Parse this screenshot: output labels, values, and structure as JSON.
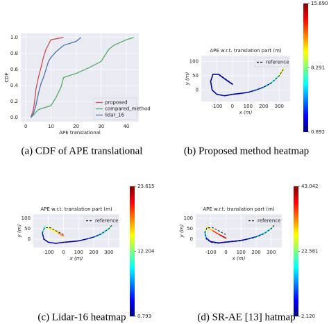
{
  "chart_data": [
    {
      "type": "line",
      "caption": "(a) CDF of APE translational",
      "xlabel": "APE translational",
      "ylabel": "CDF",
      "xlim": [
        -2,
        45
      ],
      "ylim": [
        -0.05,
        1.05
      ],
      "xticks": [
        0,
        10,
        20,
        30,
        40
      ],
      "yticks": [
        {
          "value": 0,
          "label": "0.0"
        },
        {
          "value": 0.2,
          "label": "0.2"
        },
        {
          "value": 0.4,
          "label": "0.4"
        },
        {
          "value": 0.6,
          "label": "0.6"
        },
        {
          "value": 0.8,
          "label": "0.8"
        },
        {
          "value": 1,
          "label": "1.0"
        }
      ],
      "grid": true,
      "legend": "lower right",
      "series": [
        {
          "name": "proposed",
          "color": "#c44e52",
          "x": [
            2,
            3,
            3.5,
            4,
            5,
            6,
            7,
            8,
            10,
            15
          ],
          "values": [
            0,
            0.1,
            0.2,
            0.35,
            0.5,
            0.62,
            0.75,
            0.85,
            0.97,
            1.0
          ]
        },
        {
          "name": "compared_method",
          "color": "#55a868",
          "x": [
            2,
            5,
            10,
            12,
            14,
            15,
            20,
            25,
            30,
            33,
            35,
            40,
            43
          ],
          "values": [
            0,
            0.1,
            0.15,
            0.25,
            0.38,
            0.5,
            0.55,
            0.62,
            0.7,
            0.85,
            0.9,
            0.97,
            1.0
          ]
        },
        {
          "name": "lidar_16",
          "color": "#4c72b0",
          "x": [
            2,
            3,
            4,
            5,
            6,
            7,
            8,
            9,
            10,
            12,
            15,
            20,
            22
          ],
          "values": [
            0,
            0.05,
            0.15,
            0.3,
            0.42,
            0.5,
            0.6,
            0.7,
            0.75,
            0.82,
            0.9,
            0.95,
            1.0
          ]
        }
      ]
    },
    {
      "type": "trajectory",
      "caption": "(b) Proposed method heatmap",
      "title": "APE w.r.t. translation part (m)",
      "xlabel": "x (m)",
      "ylabel": "y (m)",
      "xlim": [
        -200,
        370
      ],
      "ylim": [
        -40,
        120
      ],
      "xticks": [
        -100,
        0,
        100,
        200,
        300
      ],
      "yticks": [
        0,
        50,
        100
      ],
      "grid": true,
      "legend": "upper right",
      "series": [
        {
          "name": "reference",
          "color": "#000000",
          "dashed": true,
          "x": [
            0,
            -40,
            -90,
            -125,
            -140,
            -130,
            -100,
            -50,
            0,
            50,
            100,
            150,
            200,
            250,
            300,
            330
          ],
          "values": [
            22,
            37,
            56,
            55,
            30,
            0,
            -15,
            -20,
            -15,
            -12,
            -8,
            0,
            10,
            25,
            50,
            75
          ]
        }
      ],
      "trajectory": {
        "x": [
          0,
          -40,
          -90,
          -125,
          -140,
          -130,
          -100,
          -50,
          0,
          50,
          100,
          150,
          200,
          250,
          300,
          330
        ],
        "values": [
          20,
          35,
          55,
          55,
          30,
          0,
          -15,
          -20,
          -15,
          -12,
          -8,
          0,
          10,
          25,
          50,
          75
        ],
        "errors": [
          2,
          2.5,
          2,
          1.5,
          2,
          2.5,
          3,
          2,
          2.5,
          3,
          3.5,
          4,
          5,
          7,
          10,
          12
        ]
      },
      "colorbar": {
        "colormap": "jet",
        "clim": [
          0.892,
          15.69
        ],
        "ticks": [
          0.892,
          8.291,
          {
            "value": 15.69,
            "label": "15.690"
          }
        ]
      }
    },
    {
      "type": "trajectory",
      "caption": "(c) Lidar-16 heatmap",
      "title": "APE w.r.t. translation part (m)",
      "xlabel": "x (m)",
      "ylabel": "y (m)",
      "xlim": [
        -200,
        370
      ],
      "ylim": [
        -40,
        120
      ],
      "xticks": [
        -100,
        0,
        100,
        200,
        300
      ],
      "yticks": [
        0,
        50,
        100
      ],
      "grid": true,
      "legend": "upper right",
      "series": [
        {
          "name": "reference",
          "color": "#000000",
          "dashed": true,
          "x": [
            0,
            -40,
            -90,
            -125,
            -140,
            -130,
            -100,
            -50,
            0,
            50,
            100,
            150,
            200,
            250,
            300,
            330
          ],
          "values": [
            22,
            37,
            56,
            55,
            30,
            0,
            -15,
            -20,
            -15,
            -12,
            -8,
            0,
            10,
            25,
            50,
            75
          ]
        }
      ],
      "trajectory": {
        "x": [
          0,
          -40,
          -90,
          -125,
          -140,
          -130,
          -100,
          -50,
          0,
          50,
          100,
          150,
          200,
          250,
          300,
          330
        ],
        "values": [
          15,
          32,
          50,
          60,
          30,
          0,
          -15,
          -20,
          -15,
          -12,
          -8,
          0,
          10,
          25,
          50,
          75
        ],
        "errors": [
          18,
          15,
          14,
          10,
          5,
          3,
          3,
          2,
          2.5,
          3,
          4,
          5,
          7,
          9,
          12,
          14
        ]
      },
      "colorbar": {
        "colormap": "jet",
        "clim": [
          0.793,
          23.615
        ],
        "ticks": [
          0.793,
          12.204,
          23.615
        ]
      }
    },
    {
      "type": "trajectory",
      "caption": "(d) SR-AE [13] hatmap",
      "title": "APE w.r.t. translation part (m)",
      "xlabel": "x (m)",
      "ylabel": "y (m)",
      "xlim": [
        -200,
        370
      ],
      "ylim": [
        -40,
        120
      ],
      "xticks": [
        -100,
        0,
        100,
        200,
        300
      ],
      "yticks": [
        0,
        50,
        100
      ],
      "grid": true,
      "legend": "upper right",
      "series": [
        {
          "name": "reference",
          "color": "#000000",
          "dashed": true,
          "x": [
            0,
            -40,
            -90,
            -125,
            -140,
            -130,
            -100,
            -50,
            0,
            50,
            100,
            150,
            200,
            250,
            300,
            330
          ],
          "values": [
            22,
            37,
            56,
            55,
            30,
            0,
            -15,
            -20,
            -15,
            -12,
            -8,
            0,
            10,
            25,
            50,
            75
          ]
        }
      ],
      "trajectory": {
        "x": [
          0,
          -40,
          -90,
          -125,
          -140,
          -130,
          -100,
          -50,
          0,
          50,
          100,
          150,
          200,
          250,
          300,
          330
        ],
        "values": [
          5,
          20,
          42,
          58,
          35,
          5,
          -12,
          -18,
          -14,
          -10,
          -6,
          2,
          12,
          27,
          52,
          78
        ],
        "errors": [
          40,
          36,
          30,
          25,
          15,
          8,
          5,
          4,
          5,
          6,
          8,
          10,
          14,
          18,
          22,
          25
        ]
      },
      "colorbar": {
        "colormap": "jet",
        "clim": [
          2.12,
          43.042
        ],
        "ticks": [
          {
            "value": 2.12,
            "label": "2.120"
          },
          22.581,
          43.042
        ]
      }
    }
  ]
}
